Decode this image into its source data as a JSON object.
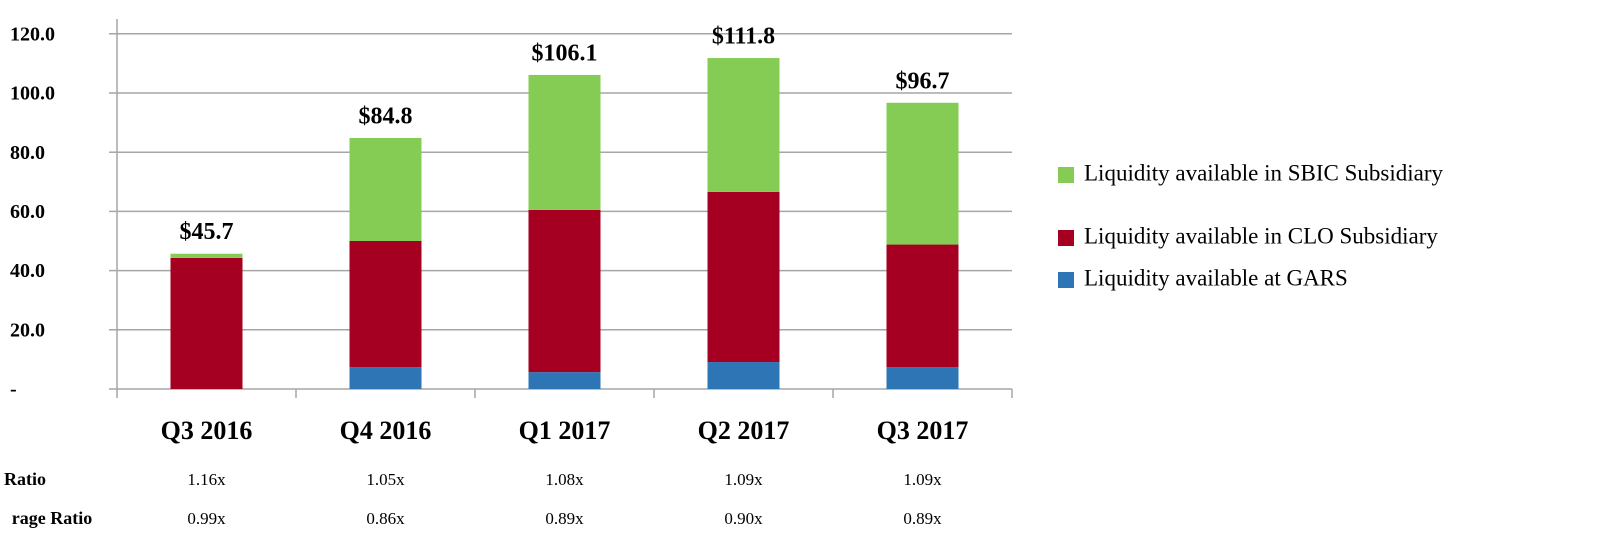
{
  "chart_data": {
    "type": "bar",
    "stacked": true,
    "categories": [
      "Q3 2016",
      "Q4 2016",
      "Q1 2017",
      "Q2 2017",
      "Q3 2017"
    ],
    "series": [
      {
        "name": "Liquidity available at GARS",
        "color": "#2e75b6",
        "values": [
          0,
          7.4,
          5.7,
          9.1,
          7.4
        ]
      },
      {
        "name": "Liquidity available in CLO Subsidiary",
        "color": "#a50021",
        "values": [
          44.3,
          42.6,
          54.8,
          57.5,
          41.4
        ]
      },
      {
        "name": "Liquidity available in SBIC Subsidiary",
        "color": "#84cc54",
        "values": [
          1.4,
          34.8,
          45.6,
          45.2,
          47.9
        ]
      }
    ],
    "total_labels": [
      "$45.7",
      "$84.8",
      "$106.1",
      "$111.8",
      "$96.7"
    ],
    "ylim": [
      0,
      125
    ],
    "yticks": [
      {
        "value": 0,
        "label": "-"
      },
      {
        "value": 20,
        "label": "20.0"
      },
      {
        "value": 40,
        "label": "40.0"
      },
      {
        "value": 60,
        "label": "60.0"
      },
      {
        "value": 80,
        "label": "80.0"
      },
      {
        "value": 100,
        "label": "100.0"
      },
      {
        "value": 120,
        "label": "120.0"
      }
    ],
    "grid": true,
    "legend": "right"
  },
  "table": {
    "rows": [
      {
        "label": "Ratio",
        "values": [
          "1.16x",
          "1.05x",
          "1.08x",
          "1.09x",
          "1.09x"
        ]
      },
      {
        "label": "rage Ratio",
        "values": [
          "0.99x",
          "0.86x",
          "0.89x",
          "0.90x",
          "0.89x"
        ]
      }
    ]
  }
}
